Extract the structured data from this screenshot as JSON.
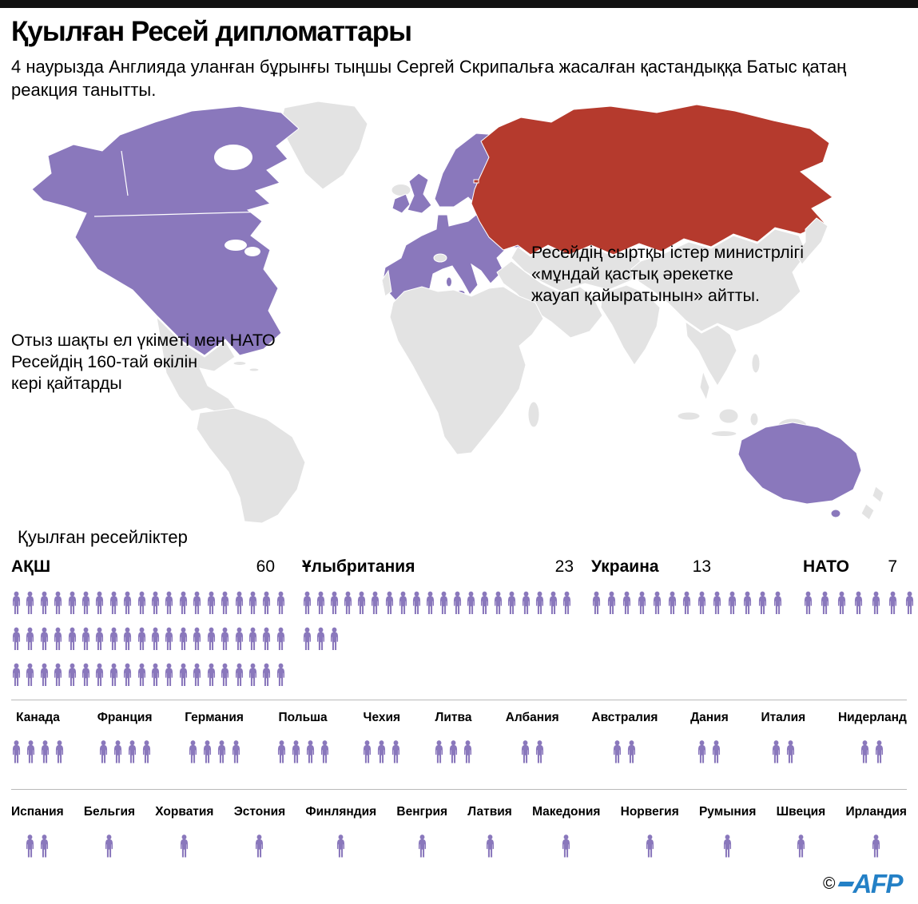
{
  "header": {
    "title": "Қуылған Ресей дипломаттары",
    "subtitle": "4 наурызда Англияда уланған бұрынғы тыңшы Сергей Скрипальға жасалған қастандыққа Батыс қатаң реакция танытты."
  },
  "map": {
    "annotation_right": "Ресейдің сыртқы істер министрлігі\n«мұндай қастық әрекетке\nжауап қайыратынын» айтты.",
    "annotation_left": "Отыз шақты ел үкіметі мен НАТО\nРесейдің 160-тай өкілін\nкері қайтарды",
    "colors": {
      "expelling_country": "#8a78bc",
      "russia": "#b53a2d",
      "other_land": "#e3e3e3"
    }
  },
  "chart_data": {
    "type": "pictogram",
    "title": "Қуылған ресейліктер",
    "icon": "person-icon",
    "icon_color": "#8a78bc",
    "legend_position": "none",
    "major_groups": [
      {
        "label": "АҚШ",
        "value": 60
      },
      {
        "label": "Ұлыбритания",
        "value": 23
      },
      {
        "label": "Украина",
        "value": 13
      },
      {
        "label": "НАТО",
        "value": 7
      }
    ],
    "mid_groups": [
      {
        "label": "Канада",
        "value": 4
      },
      {
        "label": "Франция",
        "value": 4
      },
      {
        "label": "Германия",
        "value": 4
      },
      {
        "label": "Польша",
        "value": 4
      },
      {
        "label": "Чехия",
        "value": 3
      },
      {
        "label": "Литва",
        "value": 3
      },
      {
        "label": "Албания",
        "value": 2
      },
      {
        "label": "Австралия",
        "value": 2
      },
      {
        "label": "Дания",
        "value": 2
      },
      {
        "label": "Италия",
        "value": 2
      },
      {
        "label": "Нидерланд",
        "value": 2
      }
    ],
    "minor_groups": [
      {
        "label": "Испания",
        "value": 2
      },
      {
        "label": "Бельгия",
        "value": 1
      },
      {
        "label": "Хорватия",
        "value": 1
      },
      {
        "label": "Эстония",
        "value": 1
      },
      {
        "label": "Финляндия",
        "value": 1
      },
      {
        "label": "Венгрия",
        "value": 1
      },
      {
        "label": "Латвия",
        "value": 1
      },
      {
        "label": "Македония",
        "value": 1
      },
      {
        "label": "Норвегия",
        "value": 1
      },
      {
        "label": "Румыния",
        "value": 1
      },
      {
        "label": "Швеция",
        "value": 1
      },
      {
        "label": "Ирландия",
        "value": 1
      }
    ],
    "layout": {
      "major_per_row": [
        20,
        20,
        13,
        7
      ]
    }
  },
  "footer": {
    "copyright": "©",
    "logo_text": "AFP",
    "logo_color": "#2380c6"
  }
}
